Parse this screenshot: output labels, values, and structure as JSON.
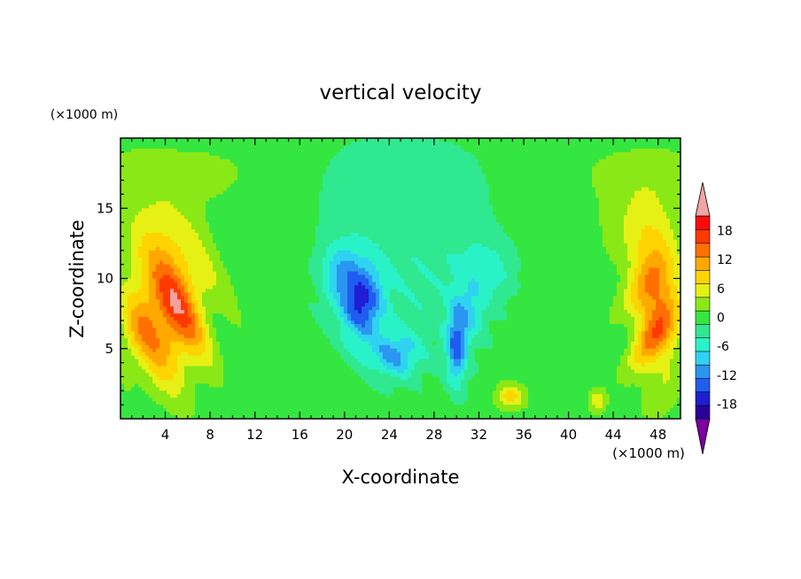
{
  "chart_data": {
    "type": "contour",
    "title": "vertical velocity",
    "xlabel": "X-coordinate",
    "ylabel": "Z-coordinate",
    "x_unit": "(×1000 m)",
    "y_unit": "(×1000 m)",
    "xlim": [
      0,
      50
    ],
    "ylim": [
      0,
      20
    ],
    "x_ticks": [
      4,
      8,
      12,
      16,
      20,
      24,
      28,
      32,
      36,
      40,
      44,
      48
    ],
    "y_ticks": [
      5,
      10,
      15
    ],
    "colorbar": {
      "levels": [
        -21,
        -18,
        -15,
        -12,
        -9,
        -6,
        -3,
        0,
        3,
        6,
        9,
        12,
        15,
        18,
        21
      ],
      "labels": [
        "18",
        "12",
        "6",
        "0",
        "-6",
        "-12",
        "-18"
      ],
      "label_values": [
        18,
        12,
        6,
        0,
        -6,
        -12,
        -18
      ],
      "colors": [
        "#7a00a0",
        "#2a009a",
        "#1e1ed2",
        "#1f5cf0",
        "#2a96f0",
        "#30d2f2",
        "#2af2c8",
        "#30e890",
        "#35e640",
        "#8ae816",
        "#e6f014",
        "#ffd400",
        "#ffa800",
        "#ff7000",
        "#ff3a00",
        "#ff0a0a",
        "#f2a3a3"
      ],
      "extend": "both"
    },
    "features": [
      {
        "x": 4.5,
        "z": 8,
        "w": 9,
        "peak": 12,
        "description": "updraft"
      },
      {
        "x": 47,
        "z": 8,
        "w": 8,
        "peak": 11,
        "description": "updraft"
      },
      {
        "x": 21.5,
        "z": 8,
        "w": -13,
        "description": "downdraft"
      },
      {
        "x": 30,
        "z": 5,
        "w": -11,
        "description": "downdraft"
      },
      {
        "x": 34.8,
        "z": 1.6,
        "w": 5,
        "description": "updraft"
      },
      {
        "x": 42.6,
        "z": 1.3,
        "w": 4,
        "description": "updraft"
      }
    ]
  }
}
